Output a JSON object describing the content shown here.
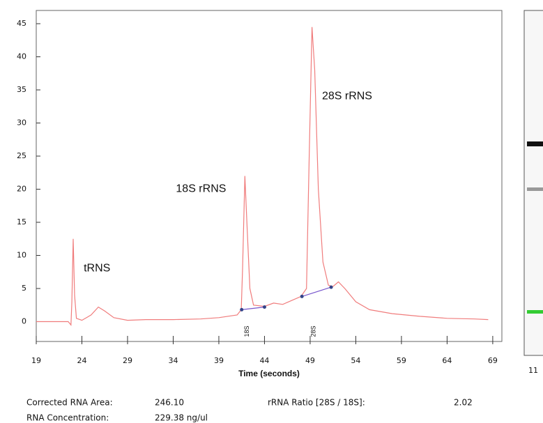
{
  "chart_data": {
    "type": "line",
    "xlabel": "Time (seconds)",
    "xlim": [
      19,
      70
    ],
    "ylim": [
      -3,
      47
    ],
    "xticks": [
      19,
      24,
      29,
      34,
      39,
      44,
      49,
      54,
      59,
      64,
      69
    ],
    "yticks": [
      0,
      5,
      10,
      15,
      20,
      25,
      30,
      35,
      40,
      45
    ],
    "series": [
      {
        "color": "#f07c7c",
        "x": [
          19,
          22.5,
          22.8,
          22.9,
          23.05,
          23.2,
          23.4,
          24,
          25,
          25.8,
          26.5,
          27.5,
          29,
          31,
          34,
          37,
          39,
          41,
          41.45,
          41.6,
          41.85,
          42.1,
          42.4,
          42.8,
          44,
          45,
          46,
          47,
          48,
          48.6,
          48.9,
          49.2,
          49.5,
          49.9,
          50.4,
          51,
          51.5,
          52.1,
          52.8,
          54,
          55.5,
          58,
          61,
          64,
          67,
          68.5
        ],
        "values": [
          0,
          0,
          -0.5,
          3,
          12.5,
          4,
          0.5,
          0.2,
          1,
          2.2,
          1.6,
          0.6,
          0.2,
          0.3,
          0.3,
          0.4,
          0.6,
          1,
          1.8,
          8,
          22,
          14,
          5,
          2.5,
          2.3,
          2.8,
          2.6,
          3.2,
          3.8,
          5,
          25,
          44.5,
          38,
          20,
          9,
          5.5,
          5.3,
          6,
          5,
          3,
          1.8,
          1.2,
          0.8,
          0.5,
          0.4,
          0.3
        ]
      }
    ],
    "baselines": [
      {
        "x": [
          41.5,
          44.0
        ],
        "values": [
          1.8,
          2.2
        ]
      },
      {
        "x": [
          48.1,
          51.3
        ],
        "values": [
          3.8,
          5.2
        ]
      }
    ],
    "annotations": [
      {
        "text": "tRNS",
        "x": 24.2,
        "y": 8
      },
      {
        "text": "18S rRNS",
        "x": 34.3,
        "y": 20
      },
      {
        "text": "28S rRNS",
        "x": 50.3,
        "y": 34
      }
    ],
    "peak_markers": [
      {
        "text": "18S",
        "x": 42.1
      },
      {
        "text": "28S",
        "x": 49.4
      }
    ],
    "grid": false
  },
  "results": {
    "area_label": "Corrected RNA Area:",
    "area_value": "246.10",
    "ratio_label": "rRNA Ratio [28S / 18S]:",
    "ratio_value": "2.02",
    "conc_label": "RNA Concentration:",
    "conc_value": "229.38 ng/ul"
  },
  "gel": {
    "lane_label": "11"
  }
}
